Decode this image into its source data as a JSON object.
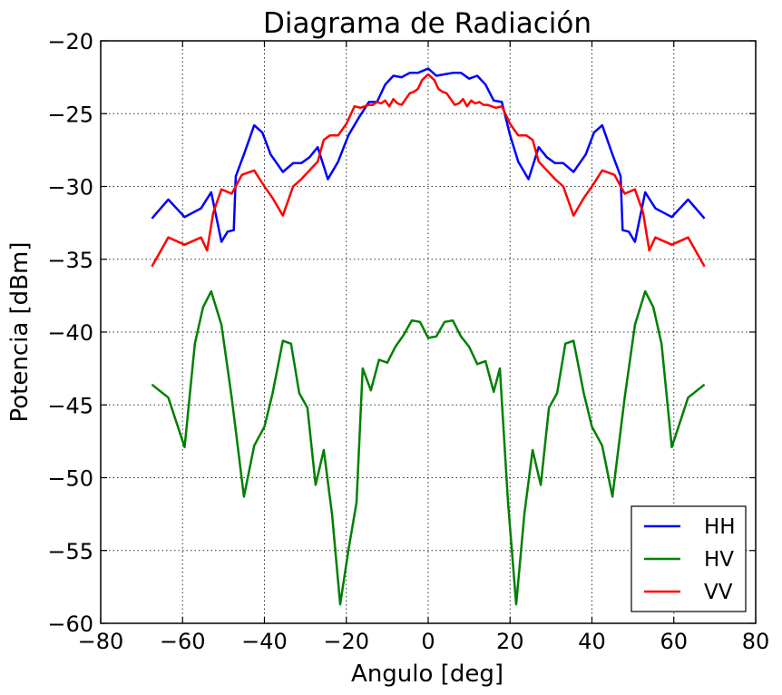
{
  "chart_data": {
    "type": "line",
    "title": "Diagrama de Radiación",
    "xlabel": "Angulo [deg]",
    "ylabel": "Potencia [dBm]",
    "xlim": [
      -80,
      80
    ],
    "ylim": [
      -60,
      -20
    ],
    "xticks": [
      -80,
      -60,
      -40,
      -20,
      0,
      20,
      40,
      60,
      80
    ],
    "yticks": [
      -20,
      -25,
      -30,
      -35,
      -40,
      -45,
      -50,
      -55,
      -60
    ],
    "xtick_labels": [
      "−80",
      "−60",
      "−40",
      "−20",
      "0",
      "20",
      "40",
      "60",
      "80"
    ],
    "ytick_labels": [
      "−20",
      "−25",
      "−30",
      "−35",
      "−40",
      "−45",
      "−50",
      "−55",
      "−60"
    ],
    "grid": true,
    "legend_position": "bottom-right",
    "series": [
      {
        "name": "HH",
        "color": "#0000ff",
        "x": [
          -67.5,
          -63.5,
          -59.5,
          -55.5,
          -53,
          -50.5,
          -49,
          -47.5,
          -47,
          -45,
          -42.5,
          -40.5,
          -38.5,
          -35.5,
          -33,
          -31,
          -29,
          -27,
          -24.5,
          -22,
          -19.5,
          -17,
          -14.5,
          -12.5,
          -10.5,
          -8.5,
          -6.5,
          -4.5,
          -2.5,
          0,
          2,
          4,
          6,
          8,
          10,
          12,
          14,
          16,
          18,
          20,
          22,
          24.5,
          27,
          29,
          31,
          33,
          35.5,
          38.5,
          40.5,
          42.5,
          45,
          47,
          47.5,
          49,
          50.5,
          53,
          55.5,
          59.5,
          63.5,
          67.5
        ],
        "y": [
          -32.2,
          -30.9,
          -32.1,
          -31.5,
          -30.4,
          -33.8,
          -33.1,
          -33.0,
          -29.3,
          -27.8,
          -25.8,
          -26.3,
          -27.8,
          -29.0,
          -28.4,
          -28.4,
          -28.0,
          -27.3,
          -29.5,
          -28.3,
          -26.5,
          -25.3,
          -24.2,
          -24.2,
          -23.0,
          -22.4,
          -22.5,
          -22.2,
          -22.2,
          -21.9,
          -22.4,
          -22.3,
          -22.2,
          -22.2,
          -22.6,
          -22.4,
          -23.0,
          -24.1,
          -24.2,
          -26.5,
          -28.3,
          -29.5,
          -27.3,
          -28.0,
          -28.4,
          -28.4,
          -29.0,
          -27.8,
          -26.3,
          -25.8,
          -27.8,
          -29.3,
          -33.0,
          -33.1,
          -33.8,
          -30.4,
          -31.5,
          -32.1,
          -30.9,
          -32.2
        ]
      },
      {
        "name": "HV",
        "color": "#008000",
        "x": [
          -67.5,
          -63.5,
          -59.5,
          -57,
          -55,
          -53,
          -50.5,
          -48,
          -45,
          -42.5,
          -40,
          -38,
          -35.5,
          -33.5,
          -31.5,
          -29.5,
          -27.5,
          -25.5,
          -23.5,
          -21.5,
          -19.5,
          -17.5,
          -16,
          -14,
          -12,
          -10,
          -8,
          -6,
          -4,
          -2,
          0,
          2,
          4,
          6,
          8,
          10,
          12,
          14,
          16,
          17.5,
          19.5,
          21.5,
          23.5,
          25.5,
          27.5,
          29.5,
          31.5,
          33.5,
          35.5,
          38,
          40,
          42.5,
          45,
          48,
          50.5,
          53,
          55,
          57,
          59.5,
          63.5,
          67.5
        ],
        "y": [
          -43.6,
          -44.5,
          -47.9,
          -40.8,
          -38.3,
          -37.2,
          -39.5,
          -44.5,
          -51.3,
          -47.8,
          -46.5,
          -44.2,
          -40.6,
          -40.8,
          -44.2,
          -45.2,
          -50.5,
          -48.1,
          -52.5,
          -58.7,
          -55.0,
          -51.7,
          -42.5,
          -44.0,
          -41.9,
          -42.1,
          -41.0,
          -40.2,
          -39.2,
          -39.3,
          -40.4,
          -40.3,
          -39.3,
          -39.2,
          -40.3,
          -41.0,
          -42.2,
          -42.0,
          -44.1,
          -42.5,
          -51.7,
          -58.7,
          -52.5,
          -48.1,
          -50.5,
          -45.2,
          -44.2,
          -40.8,
          -40.6,
          -44.2,
          -46.5,
          -47.8,
          -51.3,
          -44.5,
          -39.5,
          -37.2,
          -38.3,
          -40.8,
          -47.9,
          -44.5,
          -43.6
        ]
      },
      {
        "name": "VV",
        "color": "#ff0000",
        "x": [
          -67.5,
          -63.5,
          -59.5,
          -55.5,
          -54,
          -52.5,
          -50.5,
          -48,
          -45.5,
          -42.5,
          -40,
          -38,
          -35.5,
          -33,
          -31,
          -29,
          -27,
          -25.5,
          -24,
          -22,
          -20,
          -18,
          -16.5,
          -14.5,
          -13.5,
          -12.5,
          -11.5,
          -10.5,
          -9.5,
          -8.5,
          -7.5,
          -6.5,
          -5.5,
          -4.5,
          -3.5,
          -2.5,
          -1.5,
          0,
          1.5,
          2.5,
          3.5,
          4.5,
          5.5,
          6.5,
          7.5,
          8.5,
          9.5,
          10.5,
          11.5,
          12.5,
          13.5,
          14.5,
          16.5,
          18,
          20,
          22,
          24,
          25.5,
          27,
          29,
          31,
          33,
          35.5,
          38,
          40,
          42.5,
          45.5,
          48,
          50.5,
          52.5,
          54,
          55.5,
          59.5,
          63.5,
          67.5
        ],
        "y": [
          -35.5,
          -33.5,
          -34.0,
          -33.5,
          -34.4,
          -31.8,
          -30.2,
          -30.5,
          -29.2,
          -28.9,
          -30.0,
          -30.8,
          -32.0,
          -30.0,
          -29.5,
          -28.9,
          -28.3,
          -26.8,
          -26.5,
          -26.5,
          -25.7,
          -24.5,
          -24.6,
          -24.4,
          -24.4,
          -24.2,
          -24.3,
          -24.1,
          -24.5,
          -24.0,
          -24.3,
          -24.4,
          -24.0,
          -23.6,
          -23.5,
          -23.3,
          -22.7,
          -22.3,
          -22.7,
          -23.3,
          -23.5,
          -23.6,
          -24.0,
          -24.4,
          -24.3,
          -24.0,
          -24.5,
          -24.1,
          -24.3,
          -24.2,
          -24.4,
          -24.4,
          -24.6,
          -24.5,
          -25.7,
          -26.5,
          -26.5,
          -26.8,
          -28.3,
          -28.9,
          -29.5,
          -30.0,
          -32.0,
          -30.8,
          -30.0,
          -28.9,
          -29.2,
          -30.5,
          -30.2,
          -31.8,
          -34.4,
          -33.5,
          -34.0,
          -33.5,
          -35.5
        ]
      }
    ]
  }
}
